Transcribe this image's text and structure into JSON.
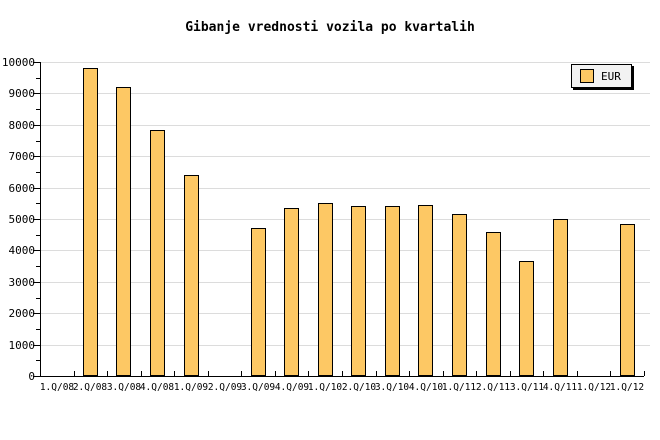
{
  "title": "Gibanje vrednosti vozila po kvartalih",
  "legend": {
    "label": "EUR"
  },
  "colors": {
    "bar_fill": "#FDC864",
    "bar_border": "#000000",
    "gridline": "#DCDCDC",
    "axis": "#000000",
    "legend_bg": "#F2F2F2",
    "legend_shadow": "#000000",
    "background": "#FFFFFF",
    "text": "#000000"
  },
  "chart_data": {
    "type": "bar",
    "title": "Gibanje vrednosti vozila po kvartalih",
    "series_name": "EUR",
    "categories": [
      "1.Q/08",
      "2.Q/08",
      "3.Q/08",
      "4.Q/08",
      "1.Q/09",
      "2.Q/09",
      "3.Q/09",
      "4.Q/09",
      "1.Q/10",
      "2.Q/10",
      "3.Q/10",
      "4.Q/10",
      "1.Q/11",
      "2.Q/11",
      "3.Q/11",
      "4.Q/11",
      "1.Q/12",
      "1.Q/12"
    ],
    "values": [
      null,
      9800,
      9200,
      7850,
      6400,
      null,
      4700,
      5350,
      5500,
      5400,
      5400,
      5450,
      5150,
      4600,
      3650,
      5000,
      null,
      4850
    ],
    "xlabel": "",
    "ylabel": "",
    "ylim": [
      0,
      10000
    ],
    "ytick_interval": 1000,
    "ytick_minor_interval": 500,
    "y_tick_labels": [
      "0",
      "1000",
      "2000",
      "3000",
      "4000",
      "5000",
      "6000",
      "7000",
      "8000",
      "9000",
      "10000"
    ],
    "grid": "horizontal",
    "legend_position": "top-right"
  }
}
